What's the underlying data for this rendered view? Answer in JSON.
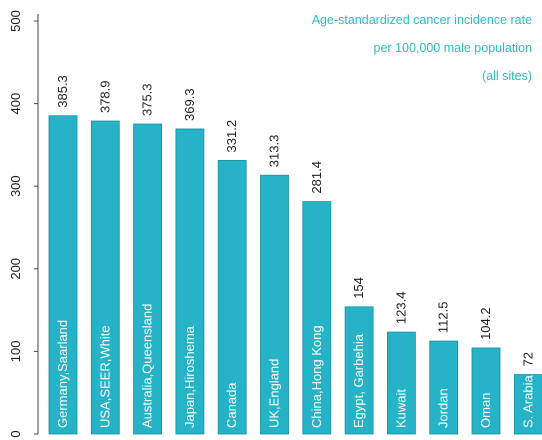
{
  "chart_data": {
    "type": "bar",
    "title_lines": [
      "Age-standardized cancer incidence rate",
      "per 100,000 male population",
      "(all sites)"
    ],
    "categories": [
      "Germany,Saarland",
      "USA,SEER,White",
      "Australia,Queensland",
      "Japan,Hiroshema",
      "Canada",
      "UK,England",
      "China,Hong Kong",
      "Egypt, Garbehia",
      "Kuwait",
      "Jordan",
      "Oman",
      "S. Arabia"
    ],
    "values": [
      385.3,
      378.9,
      375.3,
      369.3,
      331.2,
      313.3,
      281.4,
      154,
      123.4,
      112.5,
      104.2,
      72
    ],
    "value_labels": [
      "385.3",
      "378.9",
      "375.3",
      "369.3",
      "331.2",
      "313.3",
      "281.4",
      "154",
      "123.4",
      "112.5",
      "104.2",
      "72"
    ],
    "ylim": [
      0,
      500
    ],
    "yticks": [
      "0",
      "100",
      "200",
      "300",
      "400",
      "500"
    ],
    "grid": false,
    "colors": {
      "bar_fill": "#27b3c7",
      "bar_edge": "#1a8f9f",
      "title": "#2bbcc6",
      "text": "#222222",
      "axis": "#444444"
    }
  }
}
